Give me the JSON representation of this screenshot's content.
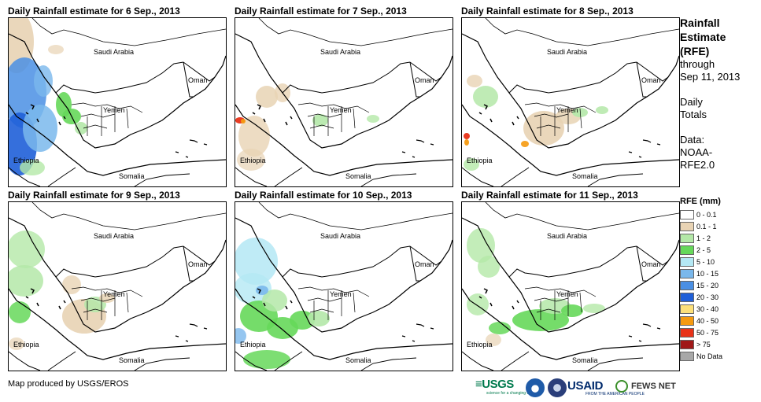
{
  "panels": [
    {
      "title": "Daily Rainfall estimate for 6 Sep., 2013"
    },
    {
      "title": "Daily Rainfall estimate for 7 Sep., 2013"
    },
    {
      "title": "Daily Rainfall estimate for 8 Sep., 2013"
    },
    {
      "title": "Daily Rainfall estimate for 9 Sep., 2013"
    },
    {
      "title": "Daily Rainfall estimate for 10 Sep., 2013"
    },
    {
      "title": "Daily Rainfall estimate for 11 Sep., 2013"
    }
  ],
  "map_labels": {
    "saudi_arabia": "Saudi Arabia",
    "oman": "Oman",
    "yemen": "Yemen",
    "ethiopia": "Ethiopia",
    "somalia": "Somalia"
  },
  "side": {
    "title_l1": "Rainfall",
    "title_l2": "Estimate",
    "title_l3": "(RFE)",
    "through": "through",
    "date": "Sep 11, 2013",
    "daily": "Daily",
    "totals": "Totals",
    "data_label": "Data:",
    "data_src1": "NOAA-",
    "data_src2": "RFE2.0"
  },
  "legend": {
    "title": "RFE (mm)",
    "items": [
      {
        "label": "0 - 0.1",
        "color": "#ffffff"
      },
      {
        "label": "0.1 - 1",
        "color": "#e8d3b4"
      },
      {
        "label": "1 - 2",
        "color": "#b4e8a8"
      },
      {
        "label": "2 - 5",
        "color": "#66d85a"
      },
      {
        "label": "5 - 10",
        "color": "#b4e8f4"
      },
      {
        "label": "10 - 15",
        "color": "#7ab8ec"
      },
      {
        "label": "15 - 20",
        "color": "#4a8fe4"
      },
      {
        "label": "20 - 30",
        "color": "#1f5fd8"
      },
      {
        "label": "30 - 40",
        "color": "#fce07a"
      },
      {
        "label": "40 - 50",
        "color": "#f59a10"
      },
      {
        "label": "50 - 75",
        "color": "#e83218"
      },
      {
        "label": "> 75",
        "color": "#a01818"
      },
      {
        "label": "No Data",
        "color": "#a8a8a8"
      }
    ]
  },
  "footer": {
    "credit": "Map produced by USGS/EROS"
  },
  "logos": {
    "usgs": "≡USGS",
    "usgs_tag": "science for a changing world",
    "usaid": "USAID",
    "usaid_tag": "FROM THE AMERICAN PEOPLE",
    "fews": "FEWS NET"
  }
}
